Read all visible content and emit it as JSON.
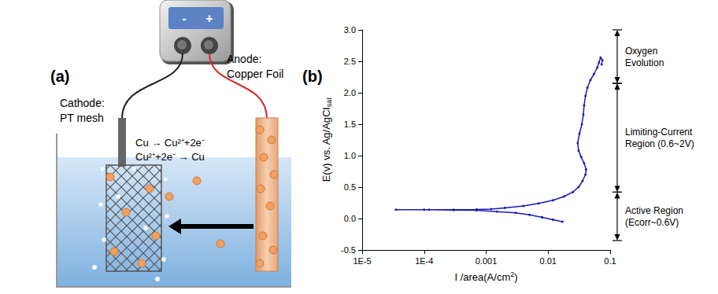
{
  "diagram": {
    "panel": "(a)",
    "supply": {
      "minus": "-",
      "plus": "+"
    },
    "cathode": [
      "Cathode:",
      "PT mesh"
    ],
    "anode": [
      "Anode:",
      "Copper Foil"
    ],
    "reactions": [
      "Cu → Cu²⁺+2e⁻",
      "Cu²⁺+2e⁻ → Cu"
    ]
  },
  "chart_data": {
    "type": "line",
    "panel": "(b)",
    "xlabel": [
      {
        "text": "I /area(A/cm"
      },
      {
        "text": "2",
        "style": "sup"
      },
      {
        "text": ")"
      }
    ],
    "ylabel": [
      {
        "text": "E(v) vs. Ag/AgCl"
      },
      {
        "text": "sat",
        "style": "sub"
      }
    ],
    "x": [
      0.017,
      0.012,
      0.008,
      0.005,
      0.003,
      0.0015,
      0.0007,
      0.0003,
      0.00012,
      3.5e-05,
      0.0001,
      0.0003,
      0.0007,
      0.0012,
      0.002,
      0.004,
      0.007,
      0.012,
      0.018,
      0.025,
      0.031,
      0.036,
      0.04,
      0.041,
      0.038,
      0.034,
      0.031,
      0.03,
      0.032,
      0.035,
      0.037,
      0.038,
      0.04,
      0.043,
      0.048,
      0.055,
      0.062,
      0.066,
      0.07,
      0.075,
      0.073
    ],
    "values": [
      -0.05,
      -0.02,
      0.02,
      0.06,
      0.09,
      0.11,
      0.13,
      0.135,
      0.14,
      0.14,
      0.14,
      0.14,
      0.145,
      0.15,
      0.17,
      0.2,
      0.24,
      0.29,
      0.35,
      0.42,
      0.5,
      0.6,
      0.7,
      0.78,
      0.88,
      0.98,
      1.08,
      1.2,
      1.35,
      1.5,
      1.65,
      1.8,
      1.95,
      2.08,
      2.2,
      2.3,
      2.4,
      2.48,
      2.56,
      2.52,
      2.45
    ],
    "color": "#1a1ab8",
    "marker": "circle",
    "line_style": "solid",
    "log": "x",
    "grid": false,
    "xlim": [
      1e-05,
      0.1
    ],
    "xticks": [
      {
        "value": 1e-05,
        "label": "1E-5"
      },
      {
        "value": 0.0001,
        "label": "1E-4"
      },
      0.001,
      0.01,
      0.1
    ],
    "ylim": [
      -0.5,
      3.0
    ],
    "yticks": [
      -0.5,
      {
        "value": 0,
        "label": "0.0"
      },
      0.5,
      {
        "value": 1,
        "label": "1.0"
      },
      1.5,
      {
        "value": 2,
        "label": "2.0"
      },
      2.5,
      {
        "value": 3,
        "label": "3.0"
      }
    ],
    "annotations": [
      {
        "text": [
          "Oxygen",
          "Evolution"
        ],
        "from": 2.15,
        "to": 3.0
      },
      {
        "text": [
          "Limiting-Current",
          "Region (0.6~2V)"
        ],
        "from": 0.42,
        "to": 2.15
      },
      {
        "text": [
          "Active Region",
          "(Ecorr~0.6V)"
        ],
        "from": -0.35,
        "to": 0.42
      }
    ]
  }
}
